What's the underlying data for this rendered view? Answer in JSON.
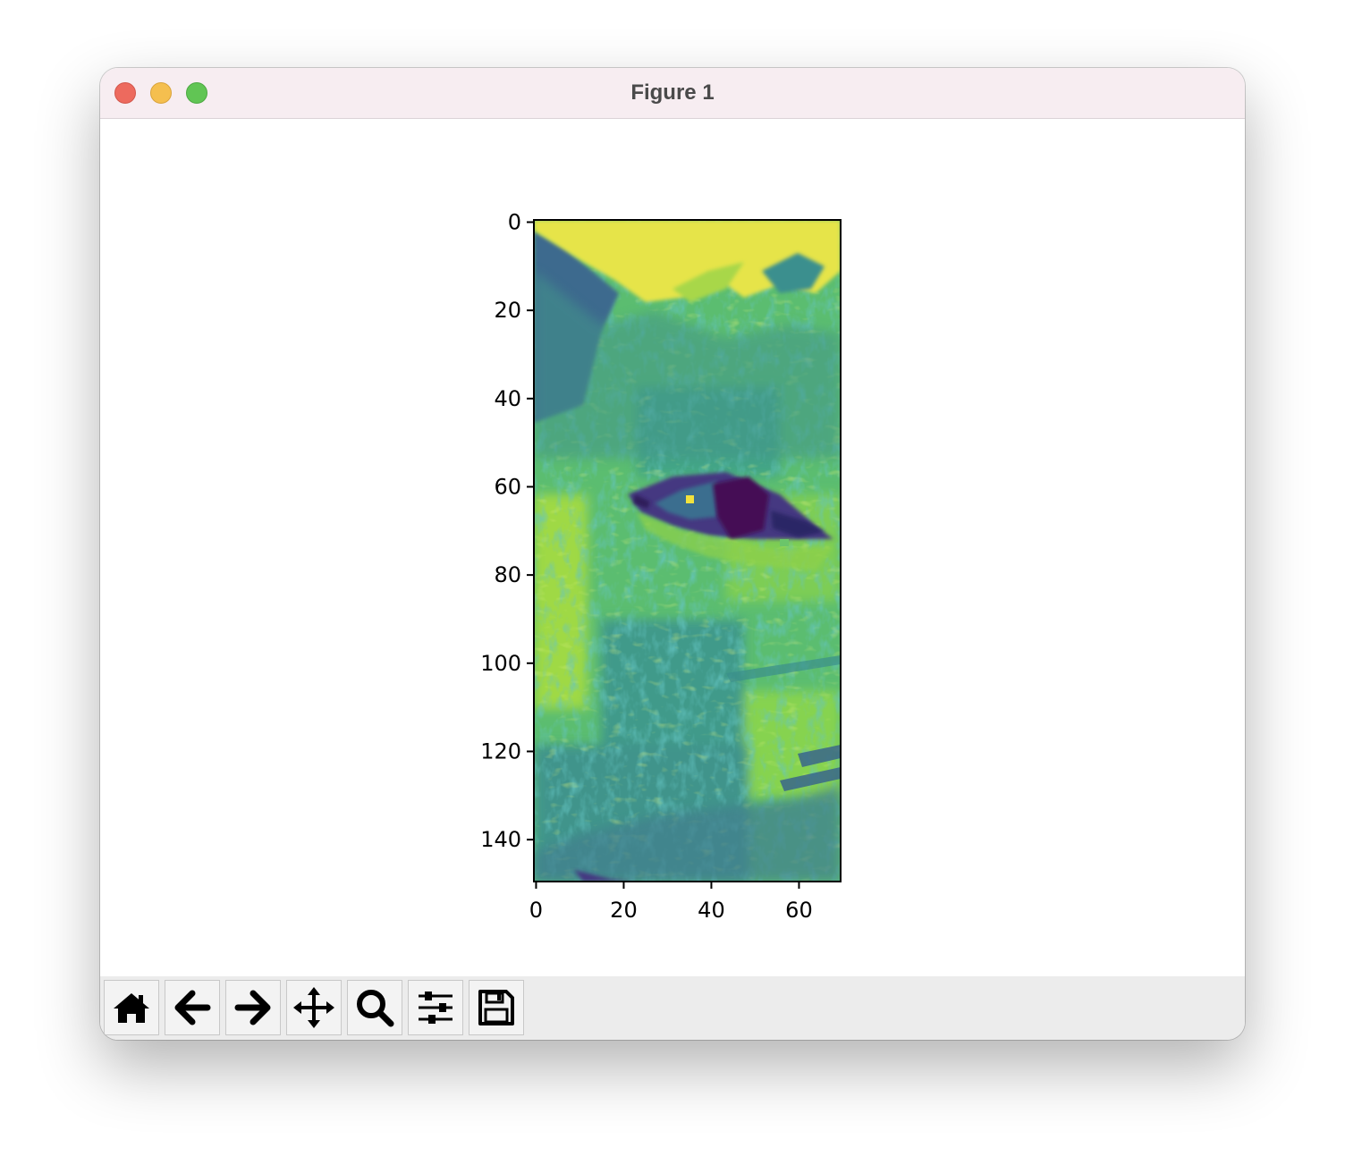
{
  "window": {
    "title": "Figure 1"
  },
  "chart_data": {
    "type": "heatmap",
    "description": "grayscale image crop shown with viridis colormap (cat eye)",
    "colormap": "viridis",
    "image_shape": [
      150,
      70
    ],
    "xlim": [
      -0.5,
      69.5
    ],
    "ylim": [
      149.5,
      -0.5
    ],
    "xticks": [
      0,
      20,
      40,
      60
    ],
    "yticks": [
      0,
      20,
      40,
      60,
      80,
      100,
      120,
      140
    ],
    "xtick_labels": [
      "0",
      "20",
      "40",
      "60"
    ],
    "ytick_labels": [
      "0",
      "20",
      "40",
      "60",
      "80",
      "100",
      "120",
      "140"
    ]
  },
  "toolbar": {
    "buttons": [
      {
        "name": "home-button",
        "icon": "home-icon"
      },
      {
        "name": "back-button",
        "icon": "arrow-left-icon"
      },
      {
        "name": "forward-button",
        "icon": "arrow-right-icon"
      },
      {
        "name": "pan-button",
        "icon": "move-icon"
      },
      {
        "name": "zoom-button",
        "icon": "magnifier-icon"
      },
      {
        "name": "configure-subplots-button",
        "icon": "sliders-icon"
      },
      {
        "name": "save-button",
        "icon": "floppy-disk-icon"
      }
    ]
  }
}
